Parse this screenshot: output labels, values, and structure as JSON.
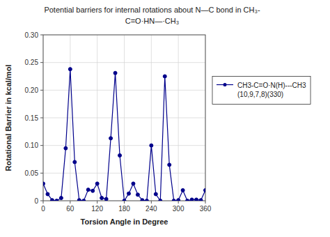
{
  "chart_data": {
    "type": "line",
    "title": "Potential barriers for internal rotations about N—C bond in CH₃-",
    "subtitle": "C=O·HN—·CH₃",
    "x_label": "Torsion Angle in Degree",
    "y_label": "Rotational Barrier in kcal/mol",
    "x": [
      0,
      10,
      20,
      30,
      40,
      50,
      60,
      70,
      80,
      90,
      100,
      110,
      120,
      130,
      140,
      150,
      160,
      170,
      180,
      190,
      200,
      210,
      220,
      230,
      240,
      250,
      260,
      270,
      280,
      290,
      300,
      310,
      320,
      330,
      340,
      350,
      360
    ],
    "series": [
      {
        "name": "CH3-C=O·N(H)---CH3\n(10,9,7,8)(330)",
        "color": "#00008B",
        "marker": "circle",
        "values": [
          0.031,
          0.012,
          0.001,
          0.0,
          0.005,
          0.095,
          0.238,
          0.07,
          0.001,
          0.0,
          0.02,
          0.018,
          0.031,
          0.005,
          0.003,
          0.113,
          0.231,
          0.082,
          0.0,
          0.013,
          0.031,
          0.011,
          0.001,
          0.0,
          0.1,
          0.012,
          0.0,
          0.225,
          0.065,
          0.0,
          0.001,
          0.019,
          0.0,
          0.002,
          0.002,
          0.001,
          0.019
        ]
      }
    ],
    "xlim": [
      0,
      360
    ],
    "ylim": [
      0,
      0.3
    ],
    "xticks": [
      0,
      60,
      120,
      180,
      240,
      300,
      360
    ],
    "yticks": [
      0,
      0.05,
      {
        "value": 0.1,
        "label": "0.10"
      },
      0.15,
      {
        "value": 0.2,
        "label": "0.20"
      },
      0.25,
      {
        "value": 0.3,
        "label": "0.30"
      }
    ],
    "grid": true,
    "legend": "right"
  }
}
